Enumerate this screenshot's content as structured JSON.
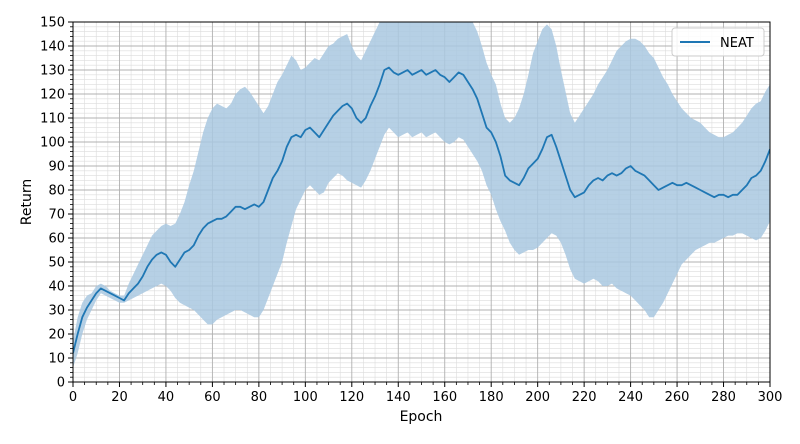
{
  "chart_data": {
    "type": "line",
    "title": "",
    "xlabel": "Epoch",
    "ylabel": "Return",
    "xlim": [
      0,
      300
    ],
    "ylim": [
      0,
      150
    ],
    "x_ticks": [
      0,
      20,
      40,
      60,
      80,
      100,
      120,
      140,
      160,
      180,
      200,
      220,
      240,
      260,
      280,
      300
    ],
    "y_ticks": [
      0,
      10,
      20,
      30,
      40,
      50,
      60,
      70,
      80,
      90,
      100,
      110,
      120,
      130,
      140,
      150
    ],
    "grid": true,
    "minor_grid": true,
    "legend_position": "top-right",
    "series": [
      {
        "name": "NEAT",
        "color": "#1f77b4",
        "band_color": "#a9c8e0",
        "x": [
          0,
          2,
          4,
          6,
          8,
          10,
          12,
          14,
          16,
          18,
          20,
          22,
          24,
          26,
          28,
          30,
          32,
          34,
          36,
          38,
          40,
          42,
          44,
          46,
          48,
          50,
          52,
          54,
          56,
          58,
          60,
          62,
          64,
          66,
          68,
          70,
          72,
          74,
          76,
          78,
          80,
          82,
          84,
          86,
          88,
          90,
          92,
          94,
          96,
          98,
          100,
          102,
          104,
          106,
          108,
          110,
          112,
          114,
          116,
          118,
          120,
          122,
          124,
          126,
          128,
          130,
          132,
          134,
          136,
          138,
          140,
          142,
          144,
          146,
          148,
          150,
          152,
          154,
          156,
          158,
          160,
          162,
          164,
          166,
          168,
          170,
          172,
          174,
          176,
          178,
          180,
          182,
          184,
          186,
          188,
          190,
          192,
          194,
          196,
          198,
          200,
          202,
          204,
          206,
          208,
          210,
          212,
          214,
          216,
          218,
          220,
          222,
          224,
          226,
          228,
          230,
          232,
          234,
          236,
          238,
          240,
          242,
          244,
          246,
          248,
          250,
          252,
          254,
          256,
          258,
          260,
          262,
          264,
          266,
          268,
          270,
          272,
          274,
          276,
          278,
          280,
          282,
          284,
          286,
          288,
          290,
          292,
          294,
          296,
          298,
          300
        ],
        "mean": [
          12,
          20,
          27,
          31,
          34,
          37,
          39,
          38,
          37,
          36,
          35,
          34,
          37,
          39,
          41,
          44,
          48,
          51,
          53,
          54,
          53,
          50,
          48,
          51,
          54,
          55,
          57,
          61,
          64,
          66,
          67,
          68,
          68,
          69,
          71,
          73,
          73,
          72,
          73,
          74,
          73,
          75,
          80,
          85,
          88,
          92,
          98,
          102,
          103,
          102,
          105,
          106,
          104,
          102,
          105,
          108,
          111,
          113,
          115,
          116,
          114,
          110,
          108,
          110,
          115,
          119,
          124,
          130,
          131,
          129,
          128,
          129,
          130,
          128,
          129,
          130,
          128,
          129,
          130,
          128,
          127,
          125,
          127,
          129,
          128,
          125,
          122,
          118,
          112,
          106,
          104,
          100,
          94,
          86,
          84,
          83,
          82,
          85,
          89,
          91,
          93,
          97,
          102,
          103,
          98,
          92,
          86,
          80,
          77,
          78,
          79,
          82,
          84,
          85,
          84,
          86,
          87,
          86,
          87,
          89,
          90,
          88,
          87,
          86,
          84,
          82,
          80,
          81,
          82,
          83,
          82,
          82,
          83,
          82,
          81,
          80,
          79,
          78,
          77,
          78,
          78,
          77,
          78,
          78,
          80,
          82,
          85,
          86,
          88,
          92,
          97
        ],
        "upper": [
          17,
          27,
          33,
          36,
          37,
          40,
          41,
          40,
          38,
          37,
          36,
          36,
          41,
          45,
          49,
          53,
          57,
          61,
          63,
          65,
          66,
          65,
          66,
          70,
          75,
          82,
          88,
          96,
          104,
          110,
          114,
          116,
          115,
          114,
          116,
          120,
          122,
          123,
          121,
          118,
          115,
          112,
          115,
          120,
          125,
          128,
          132,
          136,
          134,
          130,
          131,
          133,
          135,
          134,
          137,
          140,
          141,
          143,
          144,
          145,
          140,
          136,
          134,
          138,
          142,
          146,
          150,
          150,
          150,
          150,
          150,
          150,
          150,
          150,
          150,
          150,
          150,
          150,
          150,
          150,
          150,
          150,
          150,
          150,
          150,
          150,
          150,
          146,
          140,
          133,
          128,
          124,
          116,
          110,
          108,
          110,
          114,
          120,
          128,
          137,
          142,
          147,
          149,
          147,
          140,
          130,
          121,
          112,
          108,
          111,
          114,
          117,
          120,
          124,
          127,
          130,
          134,
          138,
          140,
          142,
          143,
          143,
          142,
          140,
          137,
          135,
          131,
          127,
          124,
          120,
          117,
          114,
          112,
          110,
          109,
          108,
          106,
          104,
          103,
          102,
          102,
          103,
          104,
          106,
          108,
          111,
          114,
          116,
          117,
          121,
          124
        ],
        "lower": [
          6,
          12,
          20,
          26,
          30,
          34,
          37,
          36,
          35,
          34,
          33,
          33,
          34,
          35,
          36,
          37,
          38,
          39,
          40,
          41,
          40,
          38,
          35,
          33,
          32,
          31,
          30,
          28,
          26,
          24,
          24,
          26,
          27,
          28,
          29,
          30,
          30,
          29,
          28,
          27,
          27,
          30,
          35,
          40,
          45,
          50,
          58,
          65,
          72,
          76,
          80,
          82,
          80,
          78,
          79,
          83,
          85,
          87,
          86,
          84,
          83,
          82,
          81,
          84,
          88,
          93,
          98,
          103,
          106,
          104,
          102,
          103,
          104,
          102,
          103,
          104,
          102,
          103,
          104,
          102,
          100,
          99,
          100,
          102,
          101,
          98,
          95,
          92,
          88,
          82,
          78,
          72,
          67,
          63,
          58,
          55,
          53,
          54,
          55,
          55,
          56,
          58,
          60,
          62,
          61,
          58,
          53,
          47,
          43,
          42,
          41,
          42,
          43,
          42,
          40,
          40,
          41,
          39,
          38,
          37,
          36,
          34,
          32,
          30,
          27,
          27,
          30,
          33,
          37,
          41,
          45,
          49,
          51,
          53,
          55,
          56,
          57,
          58,
          58,
          59,
          60,
          61,
          61,
          62,
          62,
          61,
          60,
          59,
          60,
          63,
          67
        ]
      }
    ]
  }
}
